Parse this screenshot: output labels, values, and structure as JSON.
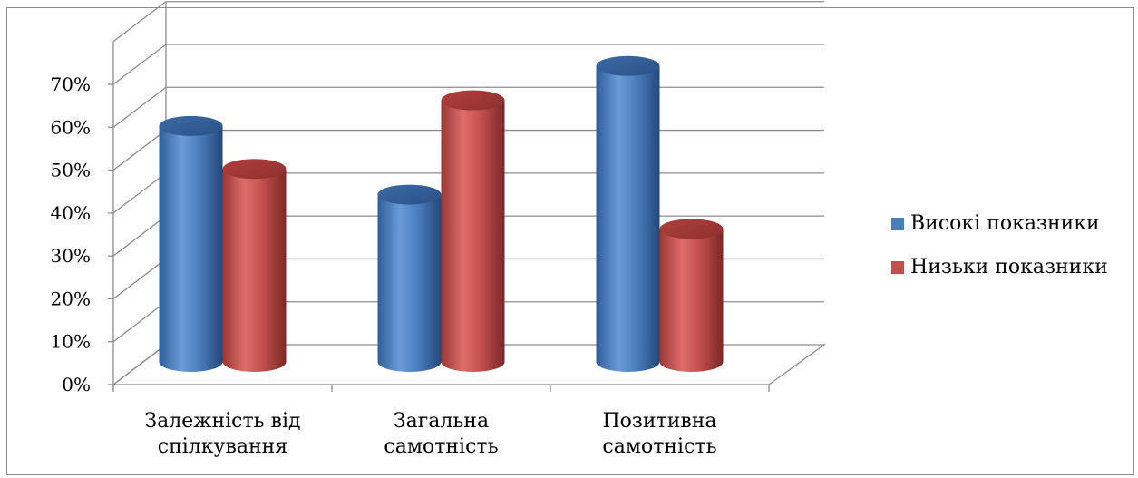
{
  "chart_data": {
    "type": "bar",
    "style": "3d-cylinder",
    "title": "",
    "xlabel": "",
    "ylabel": "",
    "ylim": [
      0,
      70
    ],
    "y_ticks": [
      "0%",
      "10%",
      "20%",
      "30%",
      "40%",
      "50%",
      "60%",
      "70%"
    ],
    "categories": [
      [
        "Залежність від",
        "спілкування"
      ],
      [
        "Загальна",
        "самотність"
      ],
      [
        "Позитивна",
        "самотність"
      ]
    ],
    "series": [
      {
        "name": "Високі показники",
        "values": [
          55,
          39,
          69
        ],
        "color": "#4a7ebb"
      },
      {
        "name": "Низьки показники",
        "values": [
          45,
          61,
          31
        ],
        "color": "#c0504d"
      }
    ],
    "grid": true,
    "legend_position": "right"
  }
}
